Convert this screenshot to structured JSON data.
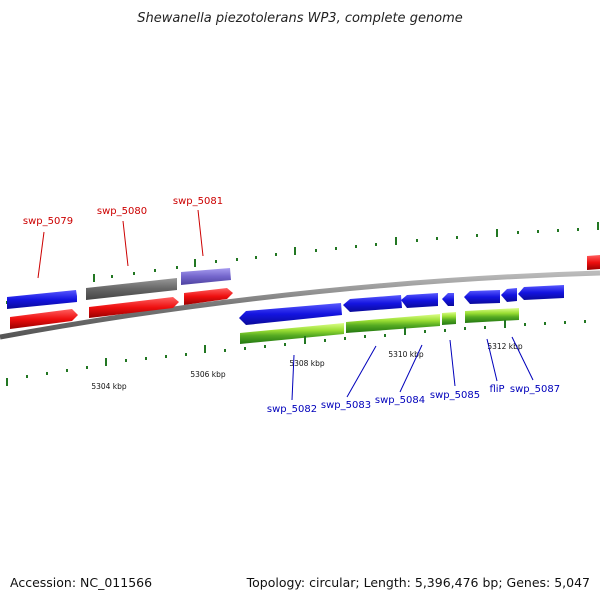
{
  "title": "Shewanella piezotolerans WP3, complete genome",
  "footer": {
    "accession": "Accession: NC_011566",
    "summary": "Topology: circular; Length: 5,396,476 bp; Genes: 5,047"
  },
  "ticks": [
    {
      "label": "5304 kbp"
    },
    {
      "label": "5306 kbp"
    },
    {
      "label": "5308 kbp"
    },
    {
      "label": "5310 kbp"
    },
    {
      "label": "5312 kbp"
    }
  ],
  "gene_labels_top": [
    {
      "text": "swp_5079",
      "color": "#cc0000"
    },
    {
      "text": "swp_5080",
      "color": "#cc0000"
    },
    {
      "text": "swp_5081",
      "color": "#cc0000"
    }
  ],
  "gene_labels_bottom": [
    {
      "text": "swp_5082",
      "color": "#0000bb"
    },
    {
      "text": "swp_5083",
      "color": "#0000bb"
    },
    {
      "text": "swp_5084",
      "color": "#0000bb"
    },
    {
      "text": "swp_5085",
      "color": "#0000bb"
    },
    {
      "text": "fliP",
      "color": "#0000bb"
    },
    {
      "text": "swp_5087",
      "color": "#0000bb"
    }
  ],
  "colors": {
    "forward_gene": "#1a1aee",
    "reverse_gene": "#1a1aee",
    "cds_track": "#ee1111",
    "unknown_gene": "#666666",
    "rna_gene": "#7766cc",
    "gc_light": "#aaee44",
    "gc_dark": "#449922",
    "backbone": "#888888",
    "tick": "#227722"
  }
}
